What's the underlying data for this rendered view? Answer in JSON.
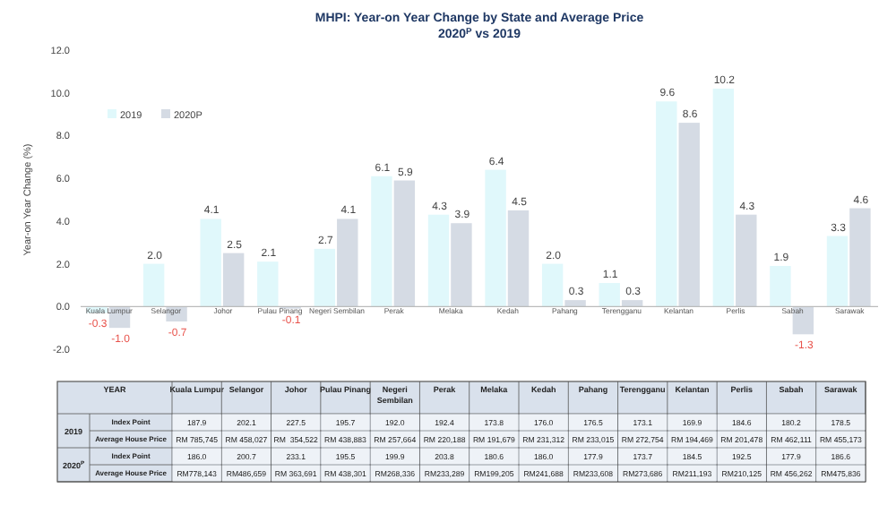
{
  "chart_data": [
    {
      "type": "bar",
      "title": "MHPI: Year-on Year Change by State and Average Price",
      "subtitle": "2020$^{P}$ vs 2019",
      "ylabel": "Year-on Year Change (%)",
      "categories": [
        "Kuala Lumpur",
        "Selangor",
        "Johor",
        "Pulau Pinang",
        "Negeri Sembilan",
        "Perak",
        "Melaka",
        "Kedah",
        "Pahang",
        "Terengganu",
        "Kelantan",
        "Perlis",
        "Sabah",
        "Sarawak"
      ],
      "series": [
        {
          "name": "2019",
          "color": "#e0f8fb",
          "values": [
            -0.3,
            2.0,
            4.1,
            2.1,
            2.7,
            6.1,
            4.3,
            6.4,
            2.0,
            1.1,
            9.6,
            10.2,
            1.9,
            3.3
          ],
          "value_labels": [
            "-0.3",
            "2.0",
            "4.1",
            "2.1",
            "2.7",
            "6.1",
            "4.3",
            "6.4",
            "2.0",
            "1.1",
            "9.6",
            "10.2",
            "1.9",
            "3.3"
          ]
        },
        {
          "name": "2020P",
          "color": "#d5dbe4",
          "values": [
            -1.0,
            -0.7,
            2.5,
            -0.1,
            4.1,
            5.9,
            3.9,
            4.5,
            0.3,
            0.3,
            8.6,
            4.3,
            -1.3,
            4.6
          ],
          "value_labels": [
            "-1.0",
            "-0.7",
            "2.5",
            "-0.1",
            "4.1",
            "5.9",
            "3.9",
            "4.5",
            "0.3",
            "0.3",
            "8.6",
            "4.3",
            "-1.3",
            "4.6"
          ]
        }
      ],
      "ylim": [
        -2,
        12
      ],
      "yticks": [
        {
          "value": -2,
          "label": "-2.0"
        },
        {
          "value": 0,
          "label": "0.0"
        },
        {
          "value": 2,
          "label": "2.0"
        },
        {
          "value": 4,
          "label": "4.0"
        },
        {
          "value": 6,
          "label": "6.0"
        },
        {
          "value": 8,
          "label": "8.0"
        },
        {
          "value": 10,
          "label": "10.0"
        },
        {
          "value": 12,
          "label": "12.0"
        }
      ],
      "legend": "top left",
      "grid": false
    },
    {
      "type": "other",
      "annotations": [
        "YEAR",
        "2019",
        "2020$^{P}$"
      ],
      "categories": [
        "Kuala Lumpur",
        "Selangor",
        "Johor",
        "Pulau Pinang",
        "Negeri Sembilan",
        "Perak",
        "Melaka",
        "Kedah",
        "Pahang",
        "Terengganu",
        "Kelantan",
        "Perlis",
        "Sabah",
        "Sarawak"
      ],
      "y_categories": [
        "Index Point",
        "Average House Price",
        "Index Point",
        "Average House Price"
      ],
      "cell_labels": [
        [
          "187.9",
          "202.1",
          "227.5",
          "195.7",
          "192.0",
          "192.4",
          "173.8",
          "176.0",
          "176.5",
          "173.1",
          "169.9",
          "184.6",
          "180.2",
          "178.5"
        ],
        [
          "RM 785,745",
          "RM 458,027",
          "RM  354,522",
          "RM 438,883",
          "RM 257,664",
          "RM 220,188",
          "RM 191,679",
          "RM 231,312",
          "RM 233,015",
          "RM 272,754",
          "RM 194,469",
          "RM 201,478",
          "RM 462,111",
          "RM 455,173"
        ],
        [
          "186.0",
          "200.7",
          "233.1",
          "195.5",
          "199.9",
          "203.8",
          "180.6",
          "186.0",
          "177.9",
          "173.7",
          "184.5",
          "192.5",
          "177.9",
          "186.6"
        ],
        [
          "RM778,143",
          "RM486,659",
          "RM 363,691",
          "RM 438,301",
          "RM268,336",
          "RM233,289",
          "RM199,205",
          "RM241,688",
          "RM233,608",
          "RM273,686",
          "RM211,193",
          "RM210,125",
          "RM 456,262",
          "RM475,836"
        ]
      ]
    }
  ]
}
